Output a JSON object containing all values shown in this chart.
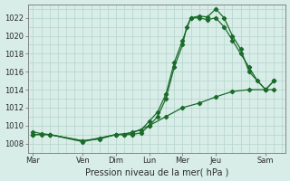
{
  "xlabel": "Pression niveau de la mer( hPa )",
  "bg_color": "#d8ede8",
  "grid_color": "#b8d8d0",
  "line_color": "#1a6b2a",
  "ylim": [
    1007,
    1023.5
  ],
  "yticks": [
    1008,
    1010,
    1012,
    1014,
    1016,
    1018,
    1020,
    1022
  ],
  "xtick_labels": [
    "Mar",
    "Ven",
    "Dim",
    "Lun",
    "Mer",
    "Jeu",
    "Sam"
  ],
  "xtick_positions": [
    0,
    3,
    5,
    7,
    9,
    11,
    14
  ],
  "xlim": [
    -0.3,
    15.2
  ],
  "minor_xticks": [
    0,
    0.5,
    1,
    1.5,
    2,
    2.5,
    3,
    3.5,
    4,
    4.5,
    5,
    5.5,
    6,
    6.5,
    7,
    7.5,
    8,
    8.5,
    9,
    9.5,
    10,
    10.5,
    11,
    11.5,
    12,
    12.5,
    13,
    13.5,
    14,
    14.5,
    15
  ],
  "line1_x": [
    0,
    0.5,
    1,
    3,
    4,
    5,
    5.5,
    6,
    6.5,
    7,
    7.5,
    8,
    8.5,
    9,
    9.25,
    9.5,
    10,
    10.5,
    11,
    11.5,
    12,
    12.5,
    13,
    13.5,
    14,
    14.5
  ],
  "line1_y": [
    1009,
    1009,
    1009,
    1008.3,
    1008.5,
    1009,
    1009,
    1009,
    1009.2,
    1010,
    1011,
    1013,
    1016.5,
    1019,
    1021,
    1022,
    1022,
    1021.8,
    1022,
    1021,
    1019.5,
    1018,
    1016.5,
    1015,
    1014,
    1015
  ],
  "line2_x": [
    0,
    0.5,
    1,
    3,
    4,
    5,
    5.5,
    6,
    6.5,
    7,
    7.5,
    8,
    8.5,
    9,
    9.5,
    10,
    10.5,
    11,
    11.5,
    12,
    12.5,
    13,
    14,
    14.5
  ],
  "line2_y": [
    1009.3,
    1009.1,
    1009,
    1008.3,
    1008.6,
    1009,
    1009,
    1009.3,
    1009.5,
    1010.5,
    1011.5,
    1013.5,
    1017,
    1019.5,
    1022,
    1022.2,
    1022.1,
    1023,
    1022,
    1020,
    1018.5,
    1016,
    1014,
    1014
  ],
  "line3_x": [
    0,
    1,
    3,
    5,
    6,
    7,
    8,
    9,
    10,
    11,
    12,
    13,
    14,
    14.5
  ],
  "line3_y": [
    1009,
    1009,
    1008.2,
    1009,
    1009.2,
    1010,
    1011,
    1012,
    1012.5,
    1013.2,
    1013.8,
    1014,
    1014,
    1015
  ]
}
